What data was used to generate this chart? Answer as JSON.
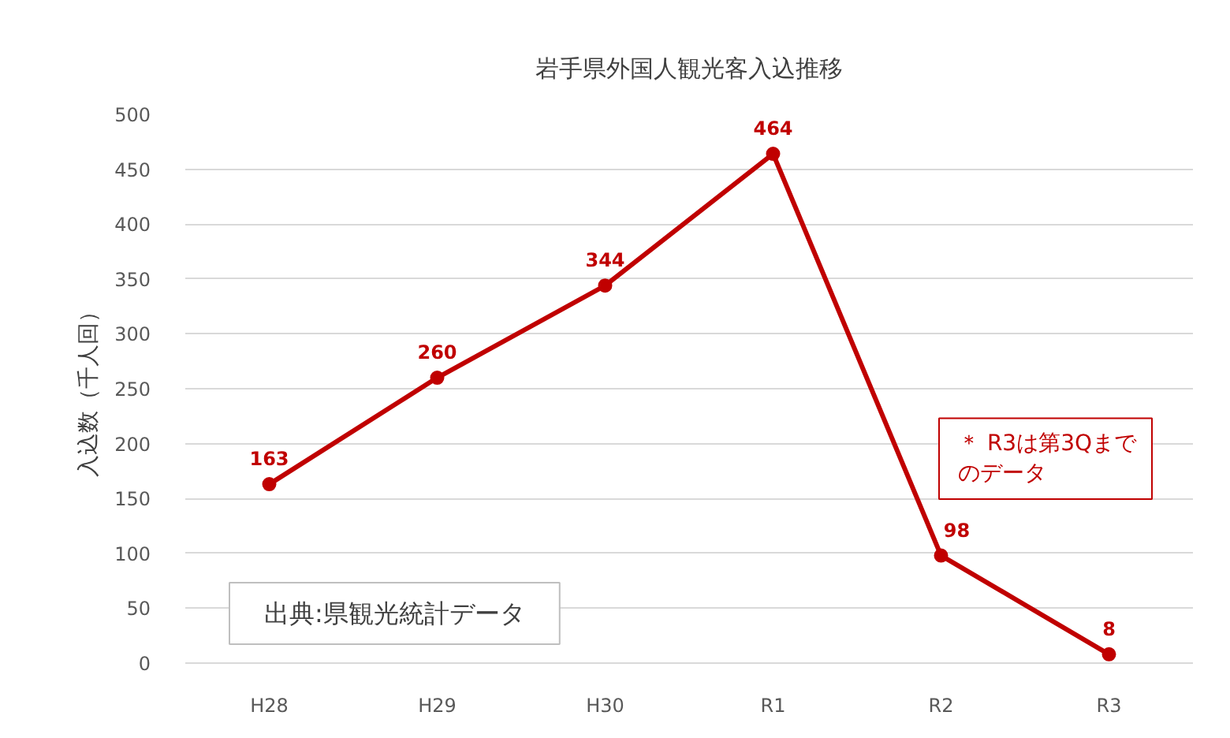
{
  "chart_data": {
    "type": "line",
    "title": "岩手県外国人観光客入込推移",
    "ylabel": "入込数（千人回）",
    "categories": [
      "H28",
      "H29",
      "H30",
      "R1",
      "R2",
      "R3"
    ],
    "series": [
      {
        "color": "#c00000",
        "values": [
          163,
          260,
          344,
          464,
          98,
          8
        ]
      }
    ],
    "ylim": [
      0,
      500
    ],
    "yticks": [
      0,
      50,
      100,
      150,
      200,
      250,
      300,
      350,
      400,
      450,
      500
    ],
    "grid": "y",
    "marker": "circle",
    "line_style": "solid",
    "data_labels": true,
    "annotations": [
      "出典:県観光統計データ",
      "＊ R3は第3Qまでのデータ"
    ]
  }
}
